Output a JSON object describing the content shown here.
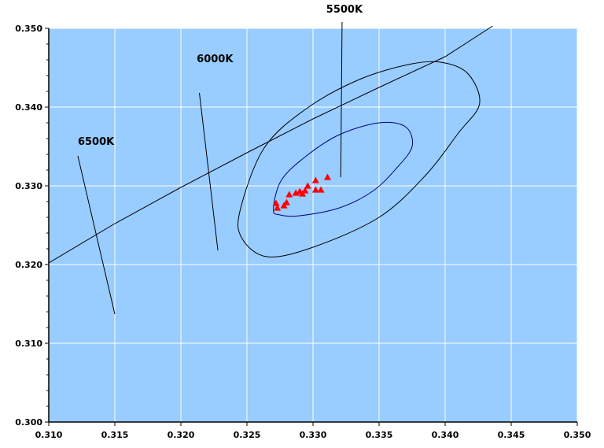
{
  "chart_data": {
    "type": "scatter",
    "title": "",
    "xlabel": "",
    "ylabel": "",
    "xlim": [
      0.31,
      0.35
    ],
    "ylim": [
      0.3,
      0.35
    ],
    "x_ticks": [
      "0.310",
      "0.315",
      "0.320",
      "0.325",
      "0.330",
      "0.335",
      "0.340",
      "0.345",
      "0.350"
    ],
    "y_ticks": [
      "0.300",
      "0.310",
      "0.320",
      "0.330",
      "0.340",
      "0.350"
    ],
    "grid": true,
    "colors": {
      "plot_background": "#99ccff",
      "gridlines": "#ffffff",
      "points": "#ff0000",
      "inner_ellipse": "#000080",
      "outer_ellipse": "#000000",
      "lines": "#000000"
    },
    "points": [
      {
        "x": 0.3272,
        "y": 0.3278
      },
      {
        "x": 0.3273,
        "y": 0.3272
      },
      {
        "x": 0.3278,
        "y": 0.3275
      },
      {
        "x": 0.328,
        "y": 0.3279
      },
      {
        "x": 0.3282,
        "y": 0.3289
      },
      {
        "x": 0.3287,
        "y": 0.3291
      },
      {
        "x": 0.329,
        "y": 0.3293
      },
      {
        "x": 0.3292,
        "y": 0.329
      },
      {
        "x": 0.3294,
        "y": 0.3294
      },
      {
        "x": 0.3296,
        "y": 0.33
      },
      {
        "x": 0.3302,
        "y": 0.3295
      },
      {
        "x": 0.3302,
        "y": 0.3307
      },
      {
        "x": 0.3306,
        "y": 0.3295
      },
      {
        "x": 0.3311,
        "y": 0.3311
      }
    ],
    "planckian_locus": [
      {
        "x": 0.31,
        "y": 0.3202
      },
      {
        "x": 0.315,
        "y": 0.3252
      },
      {
        "x": 0.32,
        "y": 0.3298
      },
      {
        "x": 0.325,
        "y": 0.3342
      },
      {
        "x": 0.33,
        "y": 0.3385
      },
      {
        "x": 0.335,
        "y": 0.3425
      },
      {
        "x": 0.34,
        "y": 0.3464
      },
      {
        "x": 0.3436,
        "y": 0.3503
      }
    ],
    "isotemperature_lines": [
      {
        "label": "6500K",
        "from": {
          "x": 0.3122,
          "y": 0.3338
        },
        "to": {
          "x": 0.315,
          "y": 0.3137
        },
        "label_at": {
          "x": 0.3122,
          "y": 0.3352
        }
      },
      {
        "label": "6000K",
        "from": {
          "x": 0.3214,
          "y": 0.3418
        },
        "to": {
          "x": 0.3228,
          "y": 0.3218
        },
        "label_at": {
          "x": 0.3212,
          "y": 0.3457
        }
      },
      {
        "label": "5500K",
        "from": {
          "x": 0.3322,
          "y": 0.3508
        },
        "to": {
          "x": 0.3321,
          "y": 0.3311
        },
        "label_at": {
          "x": 0.331,
          "y": 0.352
        }
      }
    ],
    "ellipses": [
      {
        "name": "inner",
        "points": [
          {
            "x": 0.327,
            "y": 0.327
          },
          {
            "x": 0.3276,
            "y": 0.3307
          },
          {
            "x": 0.3295,
            "y": 0.3338
          },
          {
            "x": 0.332,
            "y": 0.3365
          },
          {
            "x": 0.335,
            "y": 0.338
          },
          {
            "x": 0.337,
            "y": 0.3375
          },
          {
            "x": 0.3375,
            "y": 0.335
          },
          {
            "x": 0.3363,
            "y": 0.3322
          },
          {
            "x": 0.3345,
            "y": 0.3293
          },
          {
            "x": 0.332,
            "y": 0.3272
          },
          {
            "x": 0.329,
            "y": 0.3262
          },
          {
            "x": 0.3275,
            "y": 0.3263
          }
        ]
      },
      {
        "name": "outer",
        "points": [
          {
            "x": 0.3246,
            "y": 0.3234
          },
          {
            "x": 0.3245,
            "y": 0.327
          },
          {
            "x": 0.3263,
            "y": 0.3348
          },
          {
            "x": 0.3295,
            "y": 0.3398
          },
          {
            "x": 0.3335,
            "y": 0.3435
          },
          {
            "x": 0.3375,
            "y": 0.3455
          },
          {
            "x": 0.34,
            "y": 0.3456
          },
          {
            "x": 0.3418,
            "y": 0.3441
          },
          {
            "x": 0.3426,
            "y": 0.3404
          },
          {
            "x": 0.341,
            "y": 0.3367
          },
          {
            "x": 0.3385,
            "y": 0.3313
          },
          {
            "x": 0.335,
            "y": 0.326
          },
          {
            "x": 0.33,
            "y": 0.3222
          },
          {
            "x": 0.3265,
            "y": 0.321
          }
        ]
      }
    ]
  }
}
